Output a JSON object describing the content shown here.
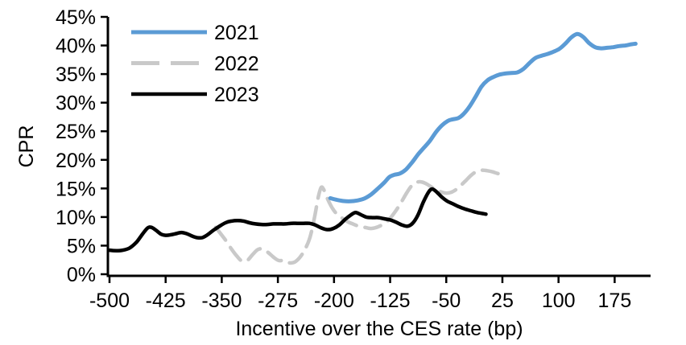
{
  "chart_data": {
    "type": "line",
    "xlabel": "Incentive over the CES rate (bp)",
    "ylabel": "CPR",
    "grid": false,
    "legend_position": "top-left",
    "x_range": [
      -500,
      223
    ],
    "y_range": [
      0,
      45
    ],
    "x_ticks": [
      -500,
      -425,
      -350,
      -275,
      -200,
      -125,
      -50,
      25,
      100,
      175
    ],
    "y_ticks": [
      0,
      5,
      10,
      15,
      20,
      25,
      30,
      35,
      40,
      45
    ],
    "y_tick_suffix": "%",
    "axis_color": "#000000",
    "series": [
      {
        "name": "2021",
        "color": "#5B9BD5",
        "style": "solid",
        "points": [
          [
            -205,
            13.3
          ],
          [
            -196,
            13.0
          ],
          [
            -187,
            12.8
          ],
          [
            -178,
            12.75
          ],
          [
            -169,
            12.9
          ],
          [
            -160,
            13.2
          ],
          [
            -151,
            13.9
          ],
          [
            -142,
            14.9
          ],
          [
            -133,
            16.0
          ],
          [
            -126,
            17.0
          ],
          [
            -119,
            17.4
          ],
          [
            -112,
            17.6
          ],
          [
            -104,
            18.3
          ],
          [
            -96,
            19.5
          ],
          [
            -88,
            20.9
          ],
          [
            -80,
            22.1
          ],
          [
            -72,
            23.3
          ],
          [
            -64,
            24.8
          ],
          [
            -56,
            26.0
          ],
          [
            -48,
            26.8
          ],
          [
            -41,
            27.1
          ],
          [
            -34,
            27.3
          ],
          [
            -27,
            28.0
          ],
          [
            -19,
            29.3
          ],
          [
            -11,
            31.0
          ],
          [
            -3,
            32.8
          ],
          [
            5,
            33.9
          ],
          [
            13,
            34.5
          ],
          [
            21,
            34.9
          ],
          [
            29,
            35.1
          ],
          [
            37,
            35.2
          ],
          [
            45,
            35.3
          ],
          [
            53,
            35.9
          ],
          [
            61,
            36.9
          ],
          [
            69,
            37.8
          ],
          [
            77,
            38.2
          ],
          [
            85,
            38.5
          ],
          [
            93,
            38.9
          ],
          [
            101,
            39.4
          ],
          [
            109,
            40.3
          ],
          [
            117,
            41.4
          ],
          [
            125,
            42.0
          ],
          [
            133,
            41.5
          ],
          [
            141,
            40.4
          ],
          [
            149,
            39.7
          ],
          [
            157,
            39.5
          ],
          [
            165,
            39.6
          ],
          [
            173,
            39.7
          ],
          [
            181,
            39.9
          ],
          [
            189,
            40.0
          ],
          [
            197,
            40.2
          ],
          [
            203,
            40.3
          ]
        ]
      },
      {
        "name": "2022",
        "color": "#C9C9C9",
        "style": "dashed",
        "points": [
          [
            -358,
            8.2
          ],
          [
            -351,
            7.0
          ],
          [
            -344,
            5.8
          ],
          [
            -337,
            4.4
          ],
          [
            -330,
            3.2
          ],
          [
            -323,
            2.3
          ],
          [
            -316,
            2.4
          ],
          [
            -309,
            3.4
          ],
          [
            -302,
            4.3
          ],
          [
            -295,
            4.4
          ],
          [
            -288,
            3.8
          ],
          [
            -281,
            3.0
          ],
          [
            -274,
            2.4
          ],
          [
            -267,
            2.4
          ],
          [
            -260,
            2.0
          ],
          [
            -253,
            2.1
          ],
          [
            -246,
            2.9
          ],
          [
            -239,
            4.3
          ],
          [
            -232,
            6.5
          ],
          [
            -226,
            10.0
          ],
          [
            -221,
            13.5
          ],
          [
            -217,
            15.2
          ],
          [
            -213,
            14.6
          ],
          [
            -208,
            13.0
          ],
          [
            -202,
            11.5
          ],
          [
            -196,
            10.5
          ],
          [
            -189,
            9.8
          ],
          [
            -182,
            9.2
          ],
          [
            -175,
            8.8
          ],
          [
            -167,
            8.4
          ],
          [
            -159,
            8.2
          ],
          [
            -151,
            8.0
          ],
          [
            -143,
            8.2
          ],
          [
            -135,
            8.7
          ],
          [
            -127,
            9.5
          ],
          [
            -119,
            10.8
          ],
          [
            -111,
            12.4
          ],
          [
            -103,
            14.2
          ],
          [
            -96,
            15.5
          ],
          [
            -89,
            16.1
          ],
          [
            -82,
            16.1
          ],
          [
            -75,
            15.7
          ],
          [
            -67,
            15.0
          ],
          [
            -59,
            14.5
          ],
          [
            -51,
            14.2
          ],
          [
            -44,
            14.3
          ],
          [
            -37,
            14.8
          ],
          [
            -30,
            15.6
          ],
          [
            -23,
            16.5
          ],
          [
            -16,
            17.4
          ],
          [
            -9,
            18.0
          ],
          [
            -2,
            18.2
          ],
          [
            5,
            18.1
          ],
          [
            12,
            17.9
          ],
          [
            19,
            17.6
          ],
          [
            25,
            17.5
          ]
        ]
      },
      {
        "name": "2023",
        "color": "#000000",
        "style": "solid",
        "points": [
          [
            -500,
            4.2
          ],
          [
            -491,
            4.1
          ],
          [
            -482,
            4.2
          ],
          [
            -473,
            4.6
          ],
          [
            -464,
            5.6
          ],
          [
            -456,
            7.0
          ],
          [
            -449,
            8.1
          ],
          [
            -444,
            8.2
          ],
          [
            -438,
            7.7
          ],
          [
            -431,
            7.0
          ],
          [
            -425,
            6.8
          ],
          [
            -418,
            6.9
          ],
          [
            -411,
            7.1
          ],
          [
            -404,
            7.3
          ],
          [
            -397,
            7.1
          ],
          [
            -390,
            6.7
          ],
          [
            -383,
            6.4
          ],
          [
            -376,
            6.4
          ],
          [
            -369,
            6.9
          ],
          [
            -361,
            7.7
          ],
          [
            -353,
            8.4
          ],
          [
            -345,
            9.0
          ],
          [
            -337,
            9.3
          ],
          [
            -329,
            9.4
          ],
          [
            -321,
            9.3
          ],
          [
            -313,
            9.0
          ],
          [
            -305,
            8.8
          ],
          [
            -297,
            8.7
          ],
          [
            -289,
            8.7
          ],
          [
            -281,
            8.8
          ],
          [
            -273,
            8.8
          ],
          [
            -265,
            8.8
          ],
          [
            -257,
            8.9
          ],
          [
            -249,
            8.9
          ],
          [
            -241,
            8.9
          ],
          [
            -233,
            8.9
          ],
          [
            -225,
            8.6
          ],
          [
            -217,
            8.1
          ],
          [
            -209,
            7.8
          ],
          [
            -201,
            8.0
          ],
          [
            -193,
            8.6
          ],
          [
            -185,
            9.6
          ],
          [
            -177,
            10.4
          ],
          [
            -171,
            10.8
          ],
          [
            -164,
            10.4
          ],
          [
            -157,
            10.0
          ],
          [
            -149,
            9.9
          ],
          [
            -141,
            9.9
          ],
          [
            -133,
            9.7
          ],
          [
            -125,
            9.5
          ],
          [
            -117,
            9.1
          ],
          [
            -109,
            8.6
          ],
          [
            -102,
            8.4
          ],
          [
            -95,
            8.9
          ],
          [
            -88,
            10.3
          ],
          [
            -81,
            12.5
          ],
          [
            -74,
            14.3
          ],
          [
            -69,
            14.9
          ],
          [
            -63,
            14.4
          ],
          [
            -56,
            13.5
          ],
          [
            -49,
            12.8
          ],
          [
            -41,
            12.3
          ],
          [
            -33,
            11.8
          ],
          [
            -25,
            11.4
          ],
          [
            -17,
            11.1
          ],
          [
            -9,
            10.8
          ],
          [
            -1,
            10.6
          ],
          [
            3,
            10.5
          ]
        ]
      }
    ]
  }
}
